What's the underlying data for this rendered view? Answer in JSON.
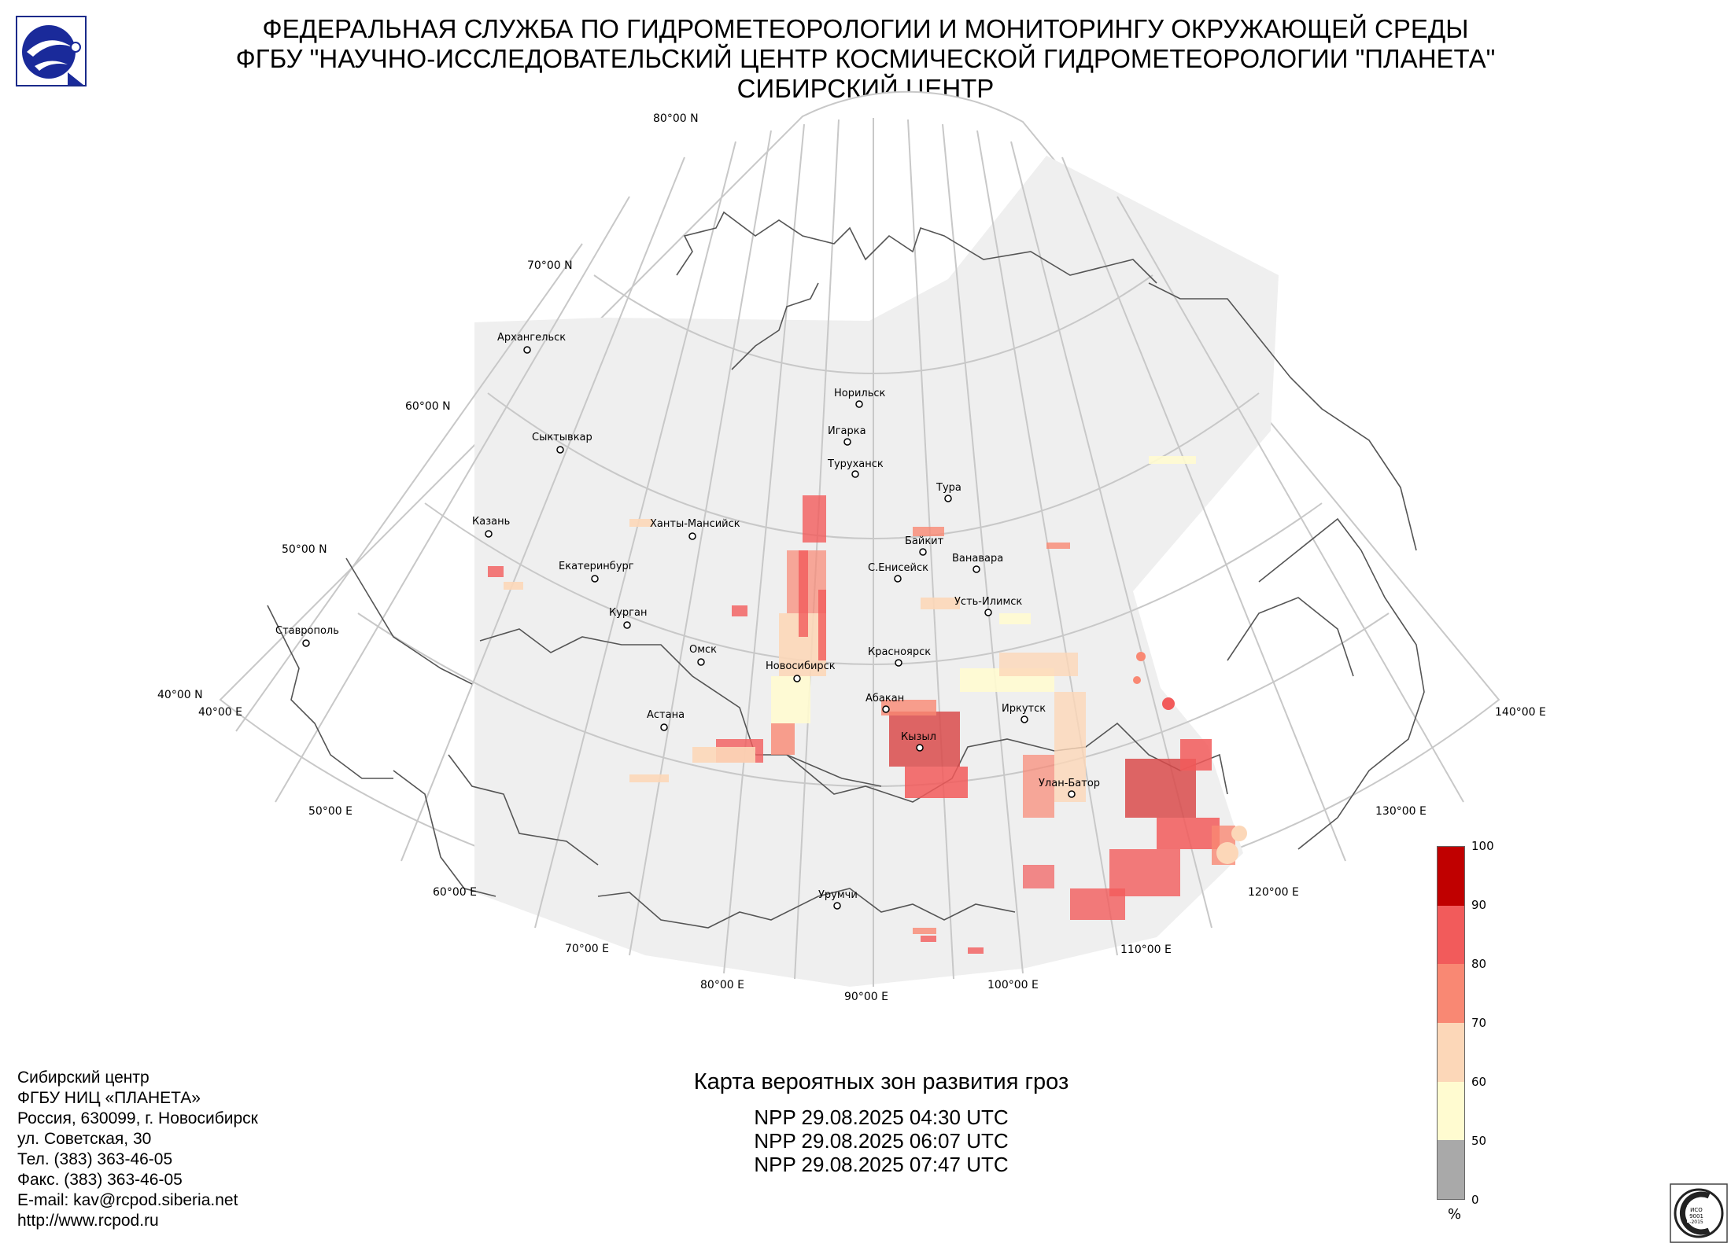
{
  "header": {
    "lines": [
      "ФЕДЕРАЛЬНАЯ СЛУЖБА ПО ГИДРОМЕТЕОРОЛОГИИ И МОНИТОРИНГУ ОКРУЖАЮЩЕЙ СРЕДЫ",
      "ФГБУ \"НАУЧНО-ИССЛЕДОВАТЕЛЬСКИЙ ЦЕНТР КОСМИЧЕСКОЙ ГИДРОМЕТЕОРОЛОГИИ \"ПЛАНЕТА\"",
      "СИБИРСКИЙ ЦЕНТР"
    ]
  },
  "map": {
    "lat_labels": [
      "80°00 N",
      "70°00 N",
      "60°00 N",
      "50°00 N",
      "40°00 N"
    ],
    "lon_labels": [
      "40°00 E",
      "50°00 E",
      "60°00 E",
      "70°00 E",
      "80°00 E",
      "90°00 E",
      "100°00 E",
      "110°00 E",
      "120°00 E",
      "130°00 E",
      "140°00 E"
    ],
    "cities": [
      {
        "name": "Архангельск"
      },
      {
        "name": "Сыктывкар"
      },
      {
        "name": "Казань"
      },
      {
        "name": "Екатеринбург"
      },
      {
        "name": "Ханты-Мансийск"
      },
      {
        "name": "Курган"
      },
      {
        "name": "Ставрополь"
      },
      {
        "name": "Омск"
      },
      {
        "name": "Астана"
      },
      {
        "name": "Новосибирск"
      },
      {
        "name": "Норильск"
      },
      {
        "name": "Игарка"
      },
      {
        "name": "Туруханск"
      },
      {
        "name": "Тура"
      },
      {
        "name": "Байкит"
      },
      {
        "name": "Ванавара"
      },
      {
        "name": "С.Енисейск"
      },
      {
        "name": "Усть-Илимск"
      },
      {
        "name": "Красноярск"
      },
      {
        "name": "Абакан"
      },
      {
        "name": "Кызыл"
      },
      {
        "name": "Иркутск"
      },
      {
        "name": "Улан-Батор"
      },
      {
        "name": "Урумчи"
      }
    ]
  },
  "legend": {
    "ticks": [
      "100",
      "90",
      "80",
      "70",
      "60",
      "50",
      "0"
    ],
    "unit": "%",
    "colors": [
      "#c00000",
      "#f25b5b",
      "#f98873",
      "#fcd7b8",
      "#fffbd0",
      "#a9a9a9"
    ]
  },
  "address": {
    "lines": [
      "Сибирский центр",
      "ФГБУ НИЦ «ПЛАНЕТА»",
      "Россия, 630099, г. Новосибирск",
      "ул. Советская, 30",
      "Тел. (383) 363-46-05",
      "Факс. (383) 363-46-05",
      "E-mail: kav@rcpod.siberia.net",
      "http://www.rcpod.ru"
    ]
  },
  "product": {
    "title": "Карта вероятных зон развития гроз",
    "passes": [
      "NPP 29.08.2025  04:30 UTC",
      "NPP 29.08.2025  06:07 UTC",
      "NPP 29.08.2025  07:47 UTC"
    ]
  },
  "logos": {
    "agency": "roshydromet-logo-icon",
    "iso": "iso-certification-seal-icon"
  }
}
